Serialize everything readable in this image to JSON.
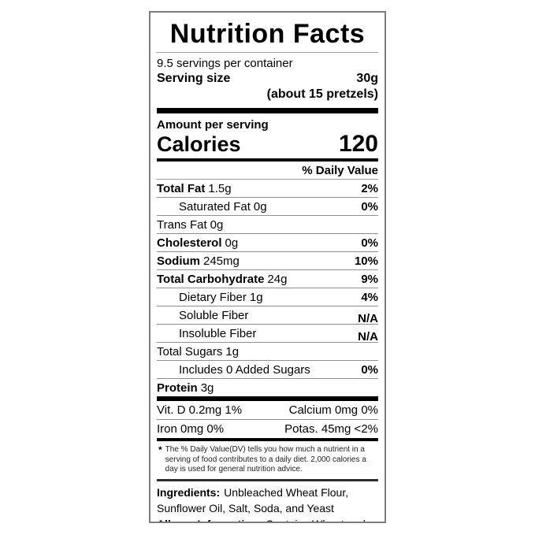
{
  "colors": {
    "background": "#ffffff",
    "text": "#000000",
    "bar": "#000000",
    "separator": "#8c8c8c"
  },
  "label": {
    "title": "Nutrition Facts",
    "servings_per_container": "9.5 servings per container",
    "serving_size": {
      "label": "Serving size",
      "value": "30g",
      "note": "(about 15 pretzels)"
    },
    "amount_per_serving": "Amount per serving",
    "calories": {
      "label": "Calories",
      "value": "120"
    },
    "daily_value_header": "% Daily Value",
    "rows": [
      {
        "name": "Total Fat",
        "amount": "1.5g",
        "dv": "2%"
      },
      {
        "name": "Saturated Fat",
        "amount": "0g",
        "dv": "0%"
      },
      {
        "name": "Trans Fat",
        "amount": "0g",
        "dv": ""
      },
      {
        "name": "Cholesterol",
        "amount": "0g",
        "dv": "0%"
      },
      {
        "name": "Sodium",
        "amount": "245mg",
        "dv": "10%"
      },
      {
        "name": "Total Carbohydrate",
        "amount": "24g",
        "dv": "9%"
      },
      {
        "name": "Dietary Fiber",
        "amount": "1g",
        "dv": "4%"
      },
      {
        "name": "Soluble Fiber",
        "amount": "",
        "dv": "N/A"
      },
      {
        "name": "Insoluble Fiber",
        "amount": "",
        "dv": "N/A"
      },
      {
        "name": "Total Sugars",
        "amount": "1g",
        "dv": ""
      },
      {
        "name": "Includes 0 Added Sugars",
        "amount": "",
        "dv": "0%"
      },
      {
        "name": "Protein",
        "amount": "3g",
        "dv": ""
      }
    ],
    "micros": {
      "row1_left": "Vit. D 0.2mg 1%",
      "row1_right": "Calcium 0mg 0%",
      "row2_left": "Iron 0mg 0%",
      "row2_right": "Potas. 45mg <2%"
    },
    "footnote": {
      "marker": "*",
      "text": "The % Daily Value(DV) tells you how much a nutrient in a serving of food contributes to a daily diet. 2,000 calories a day is used for general nutrition advice."
    },
    "ingredients": {
      "label": "Ingredients:",
      "text": "Unbleached Wheat Flour, Sunflower Oil, Salt, Soda, and Yeast"
    },
    "allergy": {
      "label": "Allergy Information:",
      "text": "Contains Wheat and Gluten"
    }
  }
}
